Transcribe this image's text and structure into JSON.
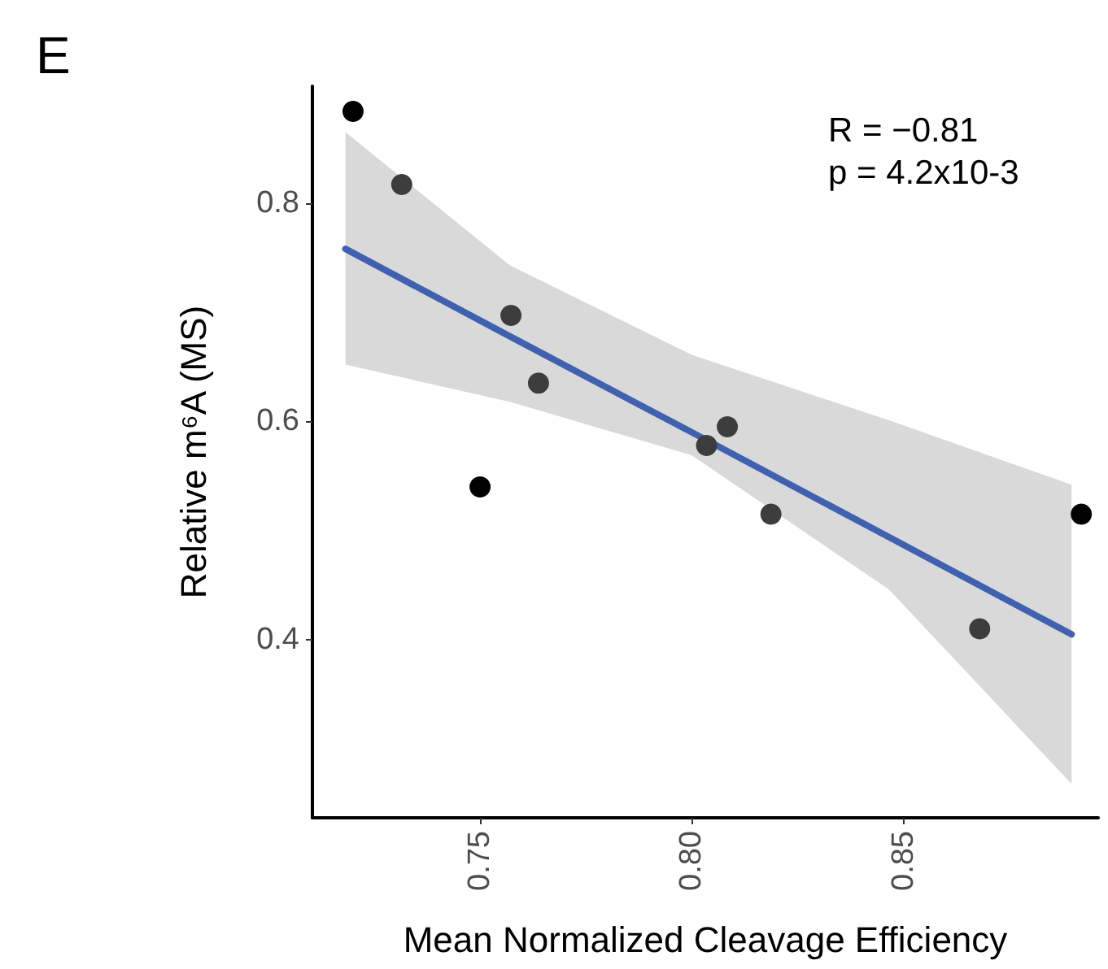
{
  "chart_data": {
    "type": "scatter",
    "xlabel": "Mean Normalized Cleavage Efficiency",
    "ylabel": "Relative m⁶A (MS)",
    "annotations": [
      "E",
      "R = −0.81",
      "p = 4.2x10-3"
    ],
    "xlim": [
      0.7104,
      0.896
    ],
    "ylim": [
      0.237,
      0.907
    ],
    "xticks": [
      {
        "value": 0.75,
        "label": "0.75"
      },
      {
        "value": 0.8,
        "label": "0.80"
      },
      {
        "value": 0.85,
        "label": "0.85"
      }
    ],
    "yticks": [
      0.4,
      0.6,
      0.8
    ],
    "grid": false,
    "series": [
      {
        "type": "line",
        "color": "#4061b0",
        "line_style": "solid",
        "x": [
          0.7182,
          0.757,
          0.8,
          0.8466,
          0.8897
        ],
        "values": [
          0.758,
          0.678,
          0.59,
          0.494,
          0.405
        ],
        "lower": [
          0.652,
          0.618,
          0.569,
          0.446,
          0.268
        ],
        "upper": [
          0.865,
          0.743,
          0.661,
          0.601,
          0.542
        ],
        "marker": "none"
      },
      {
        "marker": "circle",
        "x": [
          0.72,
          0.7315,
          0.75,
          0.7573,
          0.7638,
          0.8035,
          0.8084,
          0.8187,
          0.868,
          0.892
        ],
        "values": [
          0.884,
          0.817,
          0.54,
          0.697,
          0.635,
          0.578,
          0.595,
          0.515,
          0.41,
          0.515
        ],
        "colors": [
          "#000000",
          "#3d3d3d",
          "#000000",
          "#3d3d3d",
          "#3d3d3d",
          "#3d3d3d",
          "#3d3d3d",
          "#3d3d3d",
          "#3d3d3d",
          "#000000"
        ]
      }
    ]
  }
}
